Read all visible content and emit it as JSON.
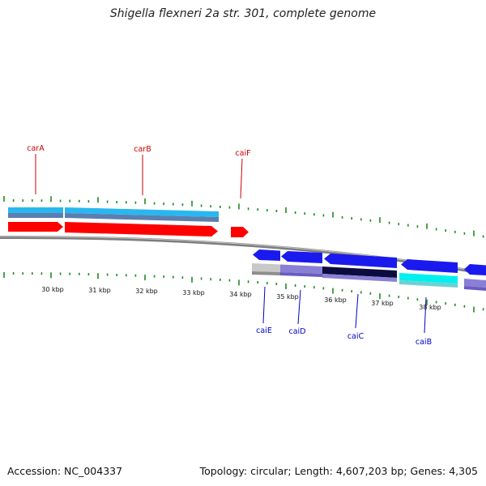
{
  "title": "Shigella flexneri 2a str. 301, complete genome",
  "footer": {
    "accession": "Accession: NC_004337",
    "topology": "Topology: circular; Length: 4,607,203 bp; Genes: 4,305"
  },
  "colors": {
    "backbone": "#8c8c8c",
    "tick": "#1f8a1f",
    "forward_label": "#cc0000",
    "reverse_label": "#0000cc",
    "forward_gene": "#ff0000",
    "reverse_gene": "#0000ee"
  },
  "axis": {
    "unit": "kbp",
    "labels": [
      "30 kbp",
      "31 kbp",
      "32 kbp",
      "33 kbp",
      "34 kbp",
      "35 kbp",
      "36 kbp",
      "37 kbp",
      "38 kbp"
    ]
  },
  "genes": {
    "forward": [
      {
        "name": "carA",
        "color": "#ff0000"
      },
      {
        "name": "carB",
        "color": "#ff0000"
      },
      {
        "name": "caiF",
        "color": "#ff0000"
      }
    ],
    "reverse": [
      {
        "name": "caiE",
        "color": "#0000ee"
      },
      {
        "name": "caiD",
        "color": "#0000ee"
      },
      {
        "name": "caiC",
        "color": "#0000ee"
      },
      {
        "name": "caiB",
        "color": "#0000ee"
      }
    ]
  }
}
